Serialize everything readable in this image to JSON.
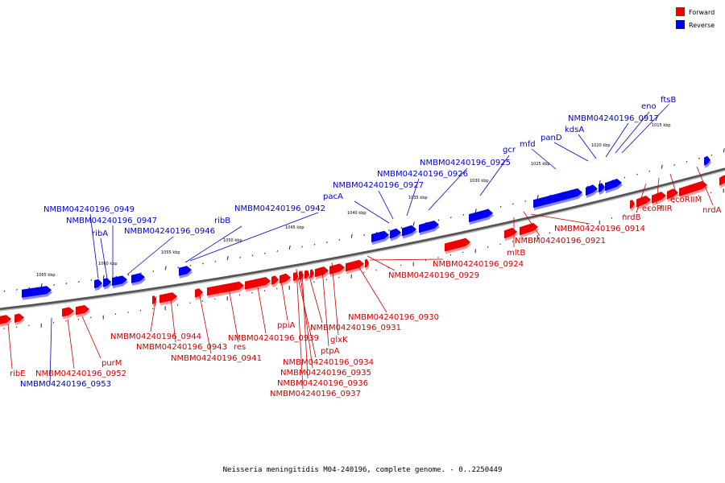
{
  "legend": {
    "forward": {
      "label": "Forward",
      "color": "#ee0000"
    },
    "reverse": {
      "label": "Reverse",
      "color": "#0000ee"
    }
  },
  "colors": {
    "forward": "#ee0000",
    "forward_shade": "#ff9999",
    "reverse": "#0000ee",
    "reverse_shade": "#8888ff",
    "backbone": "#777777"
  },
  "caption": "Neisseria meningitidis M04-240196, complete genome. - 0..2250449",
  "scale_labels": [
    "1065 kbp",
    "1060 kbp",
    "1055 kbp",
    "1050 kbp",
    "1045 kbp",
    "1040 kbp",
    "1035 kbp",
    "1030 kbp",
    "1025 kbp",
    "1020 kbp",
    "1015 kbp"
  ],
  "gene_labels": {
    "forward": [
      "ribE",
      "NMBM04240196_0952",
      "purM",
      "NMBM04240196_0944",
      "NMBM04240196_0943",
      "NMBM04240196_0941",
      "res",
      "NMBM04240196_0939",
      "ppiA",
      "NMBM04240196_0934",
      "NMBM04240196_0935",
      "NMBM04240196_0936",
      "NMBM04240196_0937",
      "ptpA",
      "glxK",
      "NMBM04240196_0931",
      "NMBM04240196_0930",
      "NMBM04240196_0929",
      "NMBM04240196_0924",
      "mltB",
      "NMBM04240196_0921",
      "NMBM04240196_0914",
      "nrdB",
      "ecoRIIR",
      "ecoRIIM",
      "nrdA"
    ],
    "reverse": [
      "NMBM04240196_0953",
      "NMBM04240196_0949",
      "NMBM04240196_0947",
      "ribA",
      "NMBM04240196_0946",
      "ribB",
      "NMBM04240196_0942",
      "pacA",
      "NMBM04240196_0927",
      "NMBM04240196_0926",
      "NMBM04240196_0925",
      "gcr",
      "mfd",
      "panD",
      "kdsA",
      "NMBM04240196_0917",
      "eno",
      "ftsB"
    ]
  }
}
